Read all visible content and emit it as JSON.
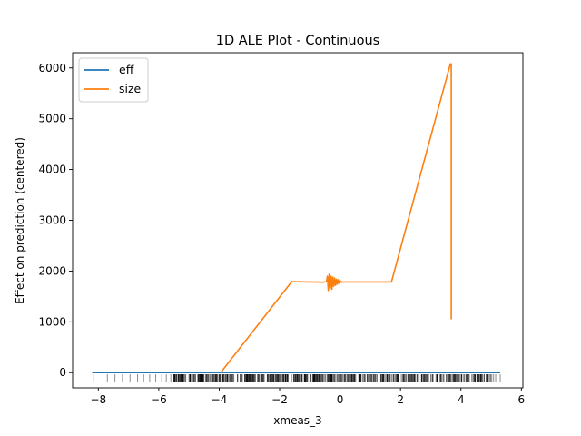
{
  "chart_data": {
    "type": "line",
    "title": "1D ALE Plot - Continuous",
    "xlabel": "xmeas_3",
    "ylabel": "Effect on prediction (centered)",
    "xlim": [
      -8.85,
      6.05
    ],
    "ylim": [
      -300,
      6300
    ],
    "xticks": [
      -8,
      -6,
      -4,
      -2,
      0,
      2,
      4,
      6
    ],
    "yticks": [
      0,
      1000,
      2000,
      3000,
      4000,
      5000,
      6000
    ],
    "grid": false,
    "legend_placement": "top-left",
    "series": [
      {
        "name": "eff",
        "color": "#1f77b4",
        "x": [
          -8.2,
          5.3
        ],
        "y": [
          0,
          0
        ]
      },
      {
        "name": "size",
        "color": "#ff7f0e",
        "x": [
          -3.95,
          -1.6,
          -0.55,
          -0.45,
          -0.42,
          -0.39,
          -0.36,
          -0.33,
          -0.3,
          -0.27,
          -0.24,
          -0.21,
          -0.18,
          -0.15,
          -0.12,
          -0.09,
          -0.06,
          -0.03,
          0.0,
          0.05,
          0.15,
          1.7,
          3.65,
          3.68,
          3.68
        ],
        "y": [
          0,
          1790,
          1780,
          1790,
          1900,
          1620,
          1940,
          1660,
          1900,
          1640,
          1880,
          1700,
          1860,
          1720,
          1840,
          1740,
          1830,
          1760,
          1810,
          1780,
          1785,
          1785,
          6080,
          6080,
          1050
        ]
      }
    ],
    "rug": {
      "sparse_x": [
        -8.15,
        -7.7,
        -7.45,
        -7.2,
        -6.95,
        -6.7,
        -6.5,
        -6.3,
        -6.1,
        -5.9,
        -5.75,
        -5.6,
        5.02,
        5.08,
        5.15,
        5.3
      ],
      "dense_range": [
        -5.5,
        5.0
      ]
    }
  }
}
